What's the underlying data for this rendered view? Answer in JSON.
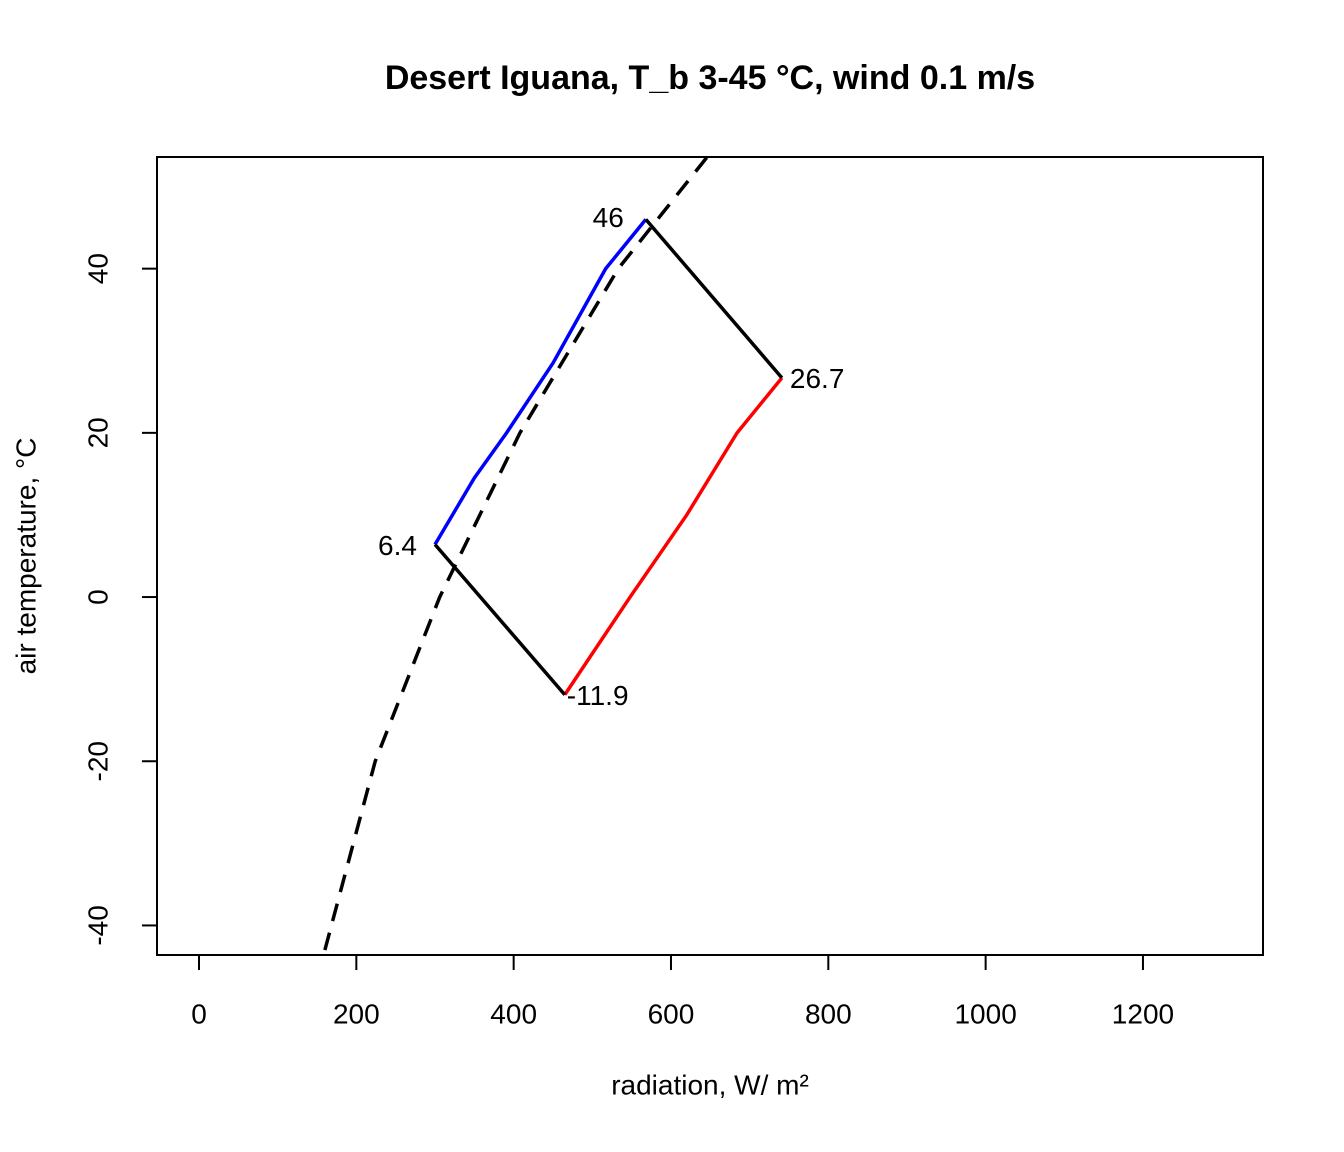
{
  "chart_data": {
    "type": "line",
    "title": "Desert Iguana, T_b 3-45 °C, wind 0.1 m/s",
    "xlabel": "radiation, W/ m²",
    "ylabel": "air temperature, °C",
    "xlim": [
      -53.4,
      1352.6
    ],
    "ylim": [
      -43.6,
      53.6
    ],
    "xticks": [
      0,
      200,
      400,
      600,
      800,
      1000,
      1200
    ],
    "yticks": [
      -40,
      -20,
      0,
      20,
      40
    ],
    "series": [
      {
        "color": "#0000ff",
        "x": [
          300,
          350,
          391,
          450,
          517,
          568
        ],
        "values": [
          6.4,
          14.5,
          20,
          28.5,
          40,
          46
        ]
      },
      {
        "color": "#ff0000",
        "x": [
          465,
          548,
          620,
          684,
          741
        ],
        "values": [
          -11.9,
          0,
          10,
          20,
          26.7
        ]
      },
      {
        "color": "#000000",
        "x": [
          568,
          741
        ],
        "values": [
          46,
          26.7
        ]
      },
      {
        "color": "#000000",
        "x": [
          300,
          465
        ],
        "values": [
          6.4,
          -11.9
        ]
      },
      {
        "color": "#000000",
        "dashed": true,
        "x": [
          160,
          224,
          306,
          408,
          533,
          646
        ],
        "values": [
          -43,
          -20,
          0,
          20,
          40,
          53.6
        ]
      }
    ],
    "annotations": [
      "46",
      "26.7",
      "6.4",
      "-11.9"
    ]
  }
}
